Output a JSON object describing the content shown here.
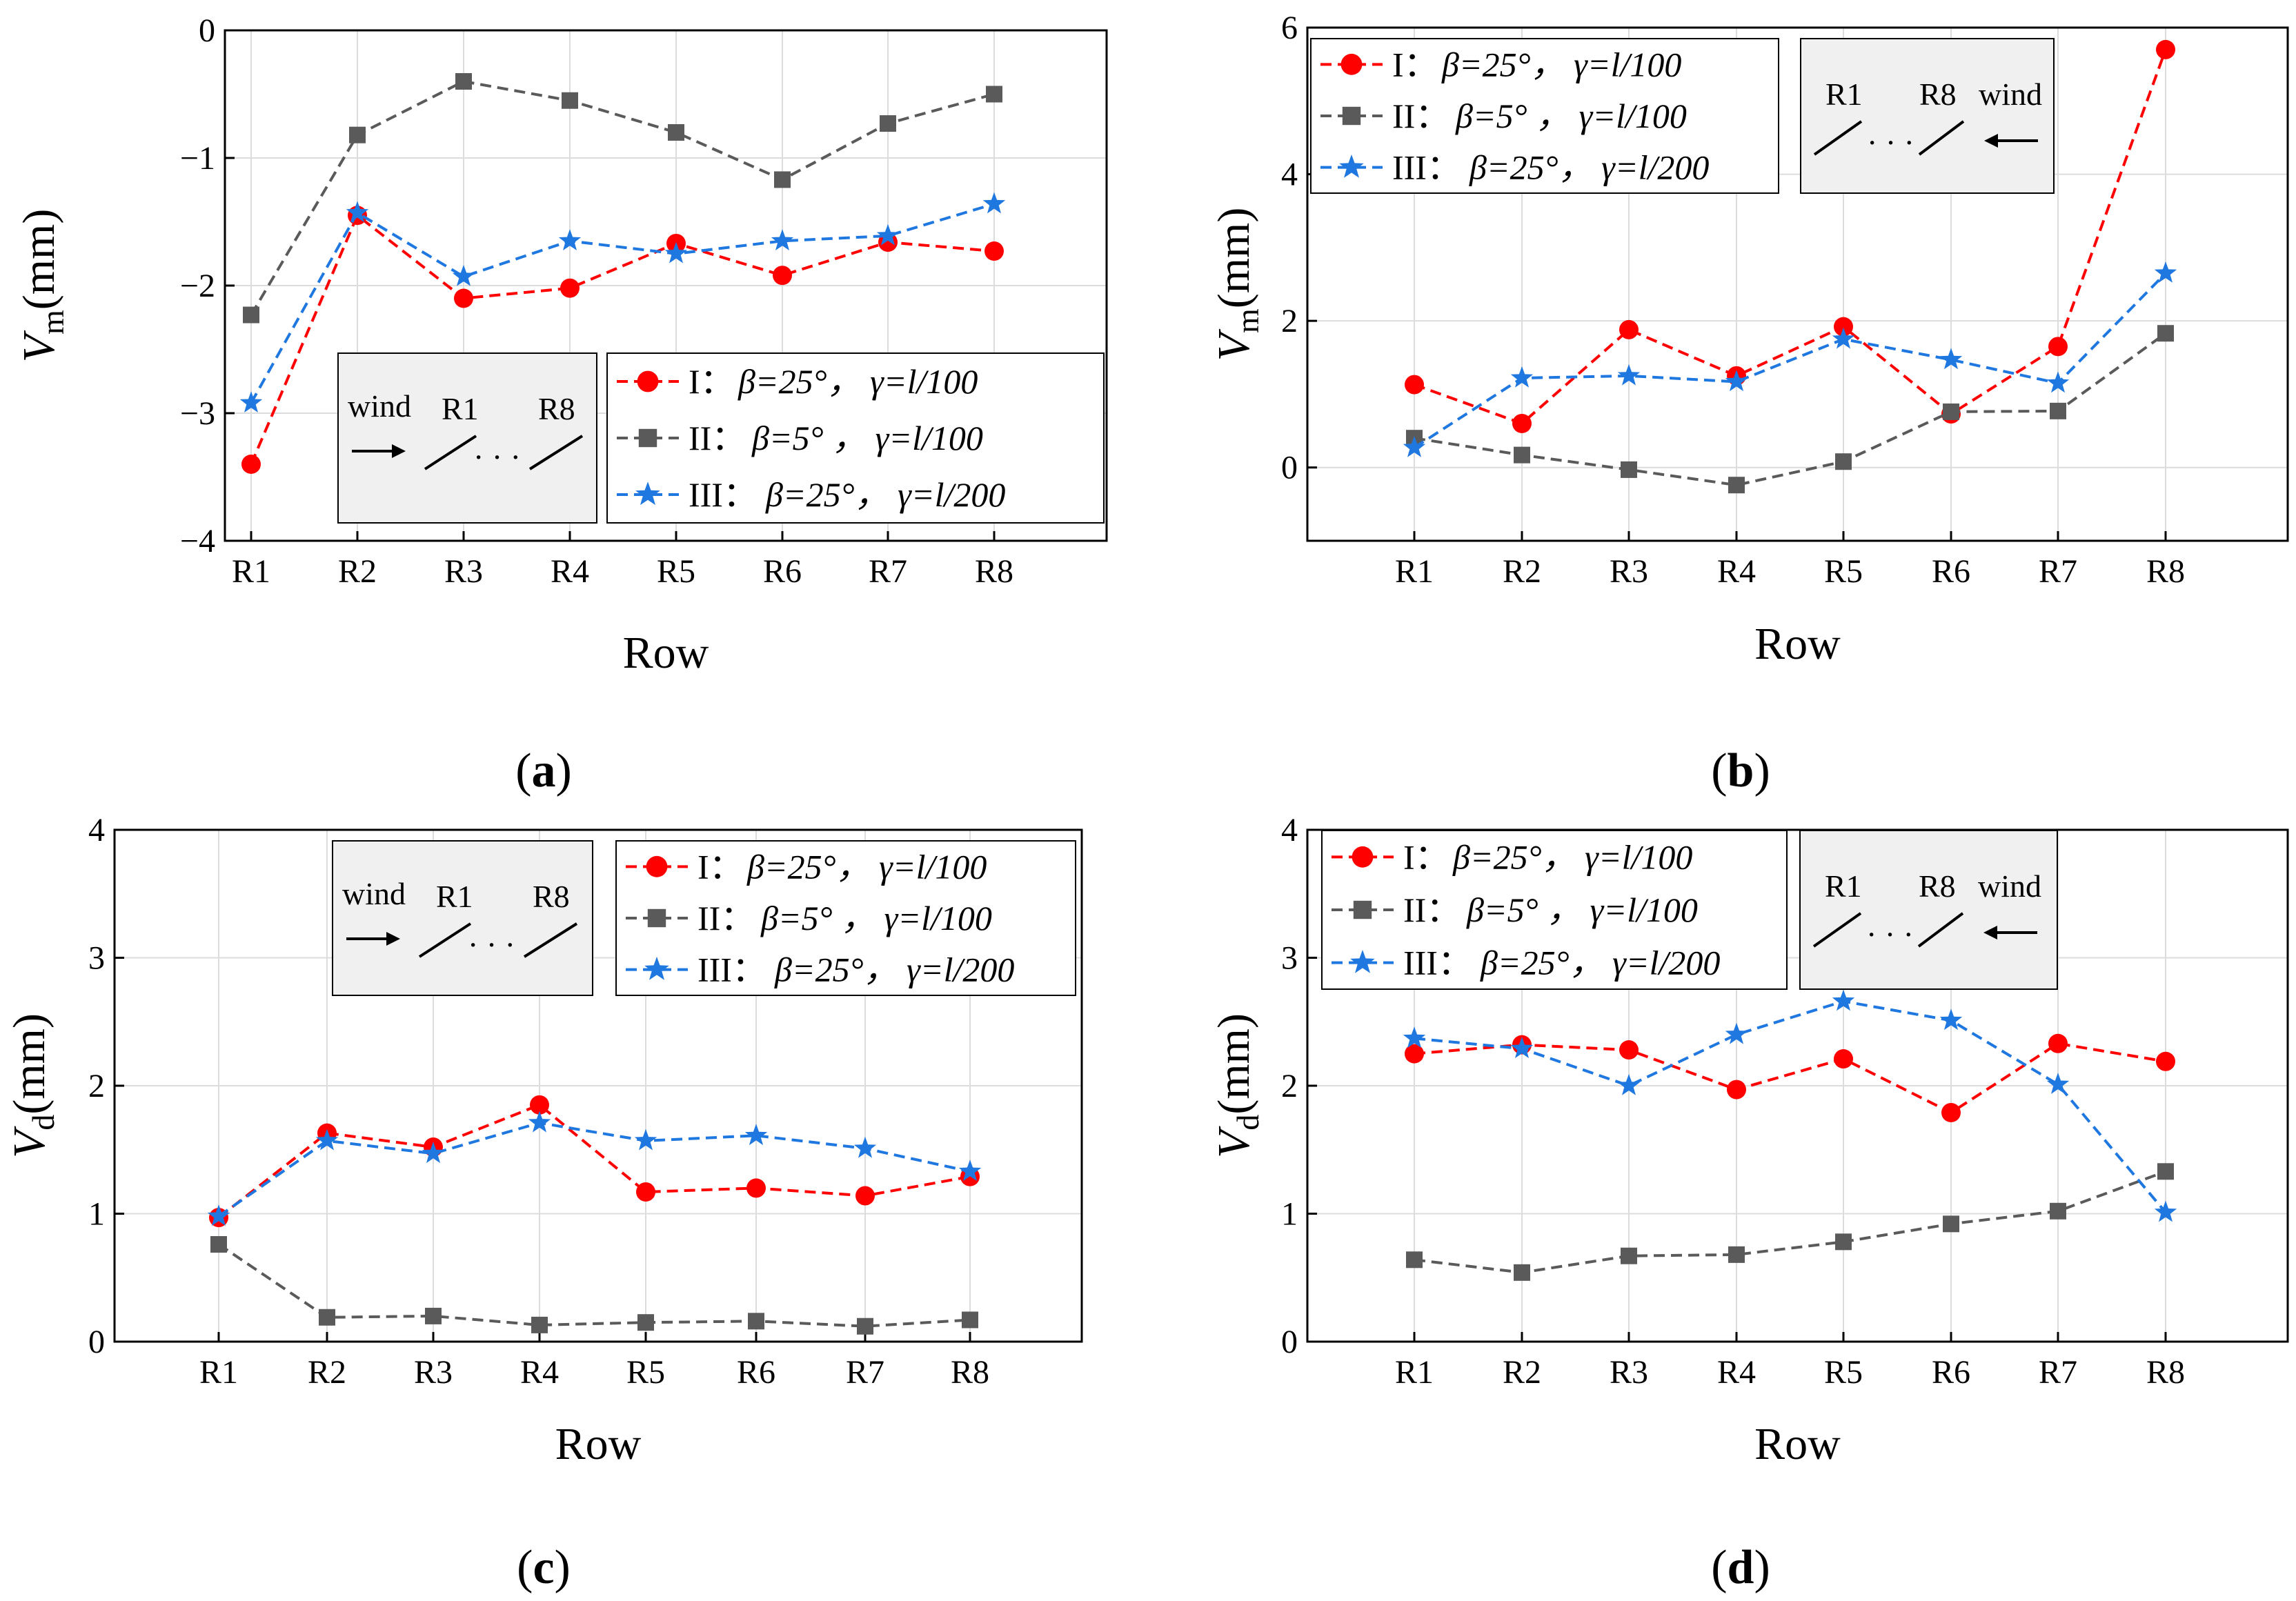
{
  "figure": {
    "panels": [
      {
        "id": "a",
        "label": "(a)",
        "label_letter": "a"
      },
      {
        "id": "b",
        "label": "(b)",
        "label_letter": "b"
      },
      {
        "id": "c",
        "label": "(c)",
        "label_letter": "c"
      },
      {
        "id": "d",
        "label": "(d)",
        "label_letter": "d"
      }
    ]
  },
  "legend_entries": [
    {
      "roman": "I：",
      "text": "β=25°， γ=l/100",
      "color": "#ff0000",
      "marker": "circle"
    },
    {
      "roman": "II：",
      "text": "β=5° ， γ=l/100",
      "color": "#5a5a5a",
      "marker": "square"
    },
    {
      "roman": "III：",
      "text": "β=25°， γ=l/200",
      "color": "#1f77e0",
      "marker": "star"
    }
  ],
  "wind_diagram": {
    "wind": "wind",
    "first": "R1",
    "last": "R8",
    "dots": "· · ·"
  },
  "chart_data": [
    {
      "id": "a",
      "type": "line",
      "title": "(a)",
      "xlabel": "Row",
      "ylabel": "Vm(mm)",
      "ylabel_main": "V",
      "ylabel_sub": "m",
      "ylabel_unit": "(mm)",
      "ylim": [
        -4,
        0
      ],
      "yticks": [
        -4,
        -3,
        -2,
        -1,
        0
      ],
      "ytick_labels": [
        "−4",
        "−3",
        "−2",
        "−1",
        "0"
      ],
      "categories": [
        "R1",
        "R2",
        "R3",
        "R4",
        "R5",
        "R6",
        "R7",
        "R8"
      ],
      "series": [
        {
          "name": "I：β=25°， γ=l/100",
          "values": [
            -3.4,
            -1.45,
            -2.1,
            -2.02,
            -1.67,
            -1.92,
            -1.66,
            -1.73
          ]
        },
        {
          "name": "II：β=5° ， γ=l/100",
          "values": [
            -2.23,
            -0.82,
            -0.4,
            -0.55,
            -0.8,
            -1.17,
            -0.73,
            -0.5
          ]
        },
        {
          "name": "III：β=25°， γ=l/200",
          "values": [
            -2.92,
            -1.43,
            -1.93,
            -1.65,
            -1.75,
            -1.65,
            -1.61,
            -1.36
          ]
        }
      ],
      "wind_direction": "left-to-right",
      "wind_box": "bottom-center",
      "legend": "bottom-right"
    },
    {
      "id": "b",
      "type": "line",
      "title": "(b)",
      "xlabel": "Row",
      "ylabel": "Vm(mm)",
      "ylabel_main": "V",
      "ylabel_sub": "m",
      "ylabel_unit": "(mm)",
      "ylim": [
        -1,
        6
      ],
      "yticks": [
        0,
        2,
        4,
        6
      ],
      "ytick_labels": [
        "0",
        "2",
        "4",
        "6"
      ],
      "categories": [
        "R1",
        "R2",
        "R3",
        "R4",
        "R5",
        "R6",
        "R7",
        "R8"
      ],
      "series": [
        {
          "name": "I：β=25°， γ=l/100",
          "values": [
            1.13,
            0.6,
            1.88,
            1.25,
            1.92,
            0.73,
            1.65,
            5.7
          ]
        },
        {
          "name": "II：β=5° ， γ=l/100",
          "values": [
            0.4,
            0.17,
            -0.03,
            -0.24,
            0.08,
            0.76,
            0.77,
            1.83
          ]
        },
        {
          "name": "III：β=25°， γ=l/200",
          "values": [
            0.27,
            1.22,
            1.25,
            1.17,
            1.75,
            1.47,
            1.15,
            2.65
          ]
        }
      ],
      "wind_direction": "right-to-left",
      "wind_box": "top-right",
      "legend": "top-left"
    },
    {
      "id": "c",
      "type": "line",
      "title": "(c)",
      "xlabel": "Row",
      "ylabel": "Vd(mm)",
      "ylabel_main": "V",
      "ylabel_sub": "d",
      "ylabel_unit": "(mm)",
      "ylim": [
        0,
        4
      ],
      "yticks": [
        0,
        1,
        2,
        3,
        4
      ],
      "ytick_labels": [
        "0",
        "1",
        "2",
        "3",
        "4"
      ],
      "categories": [
        "R1",
        "R2",
        "R3",
        "R4",
        "R5",
        "R6",
        "R7",
        "R8"
      ],
      "series": [
        {
          "name": "I：β=25°， γ=l/100",
          "values": [
            0.97,
            1.63,
            1.52,
            1.85,
            1.17,
            1.2,
            1.14,
            1.29
          ]
        },
        {
          "name": "II：β=5° ， γ=l/100",
          "values": [
            0.76,
            0.19,
            0.2,
            0.13,
            0.15,
            0.16,
            0.12,
            0.17
          ]
        },
        {
          "name": "III：β=25°， γ=l/200",
          "values": [
            0.98,
            1.57,
            1.47,
            1.71,
            1.57,
            1.61,
            1.51,
            1.33
          ]
        }
      ],
      "wind_direction": "left-to-right",
      "wind_box": "top-center",
      "legend": "top-right"
    },
    {
      "id": "d",
      "type": "line",
      "title": "(d)",
      "xlabel": "Row",
      "ylabel": "Vd(mm)",
      "ylabel_main": "V",
      "ylabel_sub": "d",
      "ylabel_unit": "(mm)",
      "ylim": [
        0,
        4
      ],
      "yticks": [
        0,
        1,
        2,
        3,
        4
      ],
      "ytick_labels": [
        "0",
        "1",
        "2",
        "3",
        "4"
      ],
      "categories": [
        "R1",
        "R2",
        "R3",
        "R4",
        "R5",
        "R6",
        "R7",
        "R8"
      ],
      "series": [
        {
          "name": "I：β=25°， γ=l/100",
          "values": [
            2.25,
            2.32,
            2.28,
            1.97,
            2.21,
            1.79,
            2.33,
            2.19
          ]
        },
        {
          "name": "II：β=5° ， γ=l/100",
          "values": [
            0.64,
            0.54,
            0.67,
            0.68,
            0.78,
            0.92,
            1.02,
            1.33
          ]
        },
        {
          "name": "III：β=25°， γ=l/200",
          "values": [
            2.37,
            2.29,
            2.0,
            2.4,
            2.66,
            2.51,
            2.01,
            1.01
          ]
        }
      ],
      "wind_direction": "right-to-left",
      "wind_box": "top-right",
      "legend": "top-left"
    }
  ]
}
